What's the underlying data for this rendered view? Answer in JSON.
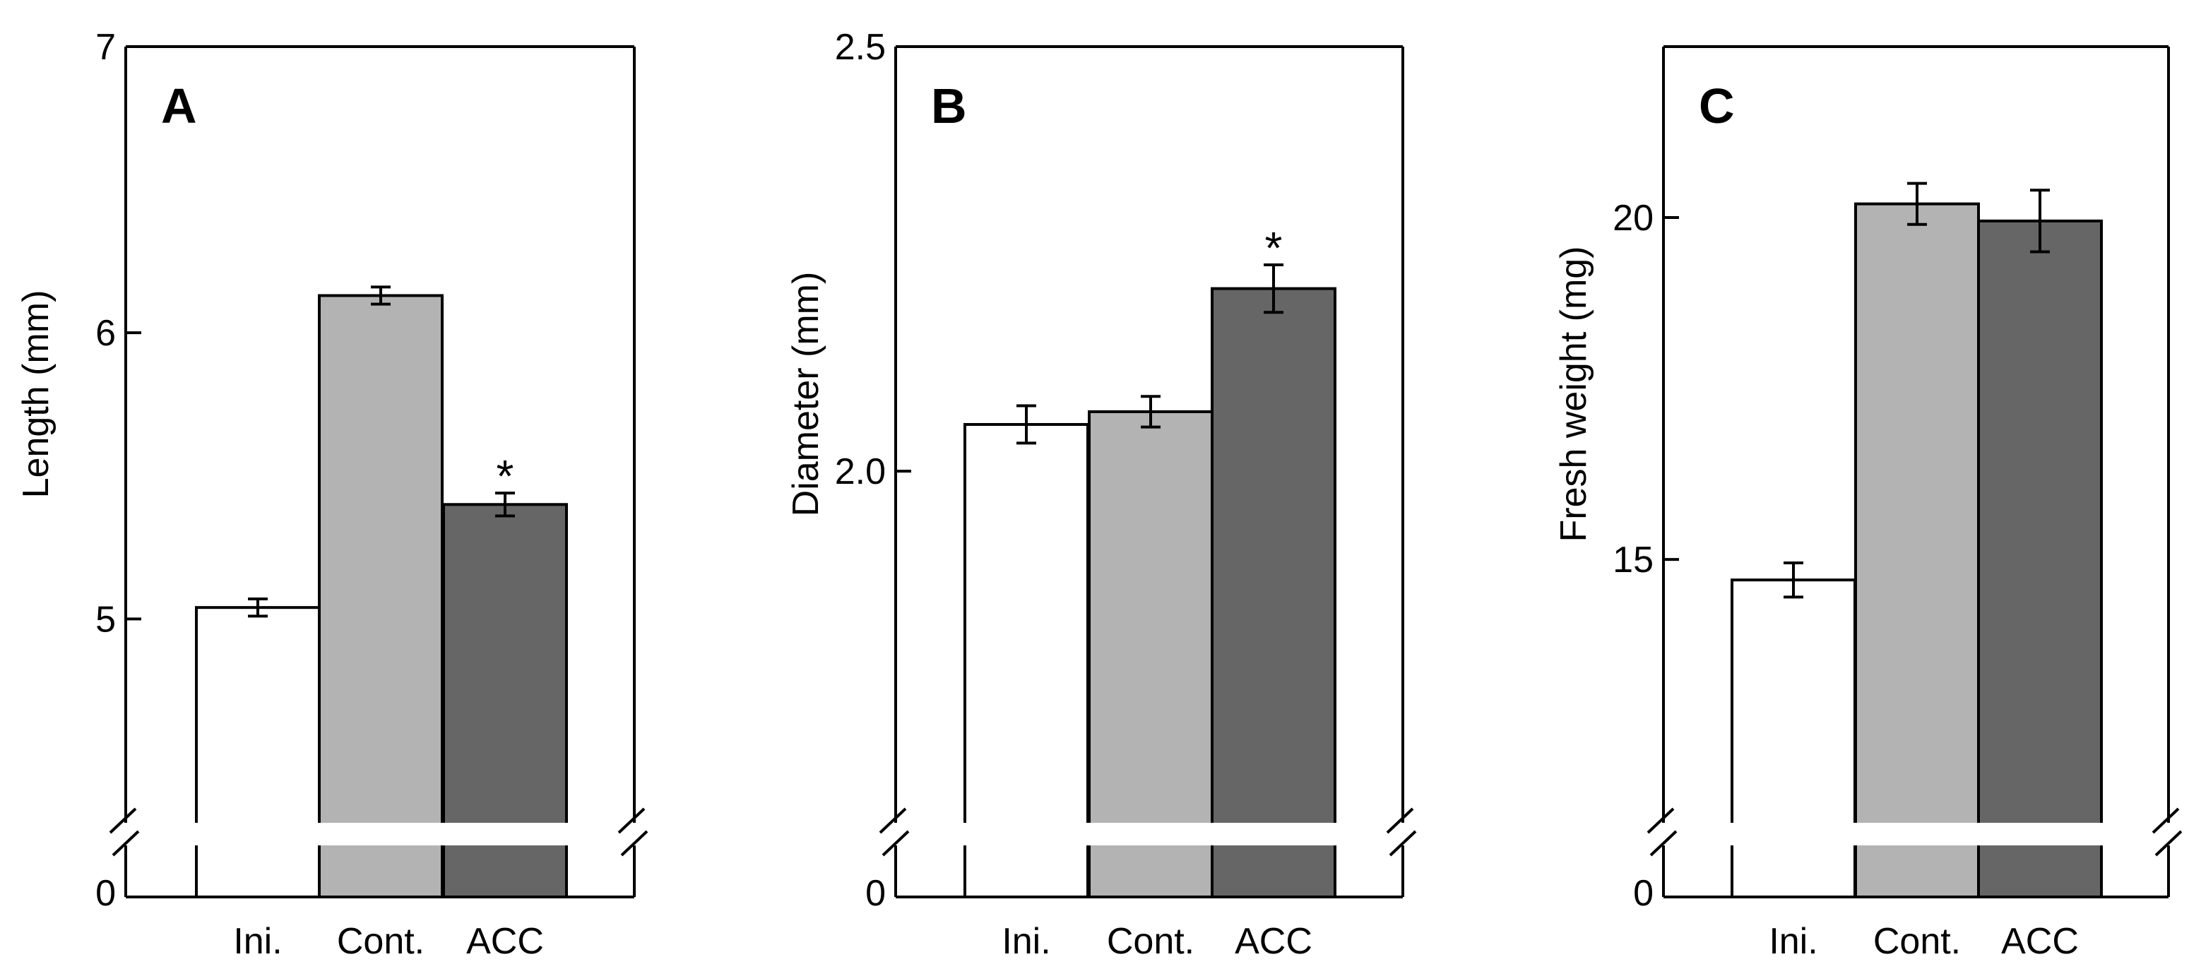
{
  "chart_data": [
    {
      "type": "bar",
      "panel": "A",
      "title": "",
      "ylabel": "Length (mm)",
      "xlabel": "",
      "categories": [
        "Ini.",
        "Cont.",
        "ACC"
      ],
      "values": [
        5.04,
        6.13,
        5.4
      ],
      "errors": [
        0.03,
        0.03,
        0.04
      ],
      "significance": [
        "",
        "",
        "*"
      ],
      "ylim": [
        4.3,
        7.0
      ],
      "ticks": [
        5,
        6,
        7
      ],
      "tick_labels": [
        "5",
        "6",
        "7"
      ],
      "zero_label": "0",
      "axis_break": true
    },
    {
      "type": "bar",
      "panel": "B",
      "title": "",
      "ylabel": "Diameter (mm)",
      "xlabel": "",
      "categories": [
        "Ini.",
        "Cont.",
        "ACC"
      ],
      "values": [
        2.055,
        2.07,
        2.215
      ],
      "errors": [
        0.022,
        0.018,
        0.028
      ],
      "significance": [
        "",
        "",
        "*"
      ],
      "ylim": [
        1.59,
        2.5
      ],
      "ticks": [
        2.0,
        2.5
      ],
      "tick_labels": [
        "2.0",
        "2.5"
      ],
      "zero_label": "0",
      "axis_break": true
    },
    {
      "type": "bar",
      "panel": "C",
      "title": "",
      "ylabel": "Fresh weight (mg)",
      "xlabel": "",
      "categories": [
        "Ini.",
        "Cont.",
        "ACC"
      ],
      "values": [
        14.7,
        20.2,
        19.95
      ],
      "errors": [
        0.25,
        0.3,
        0.45
      ],
      "significance": [
        "",
        "",
        ""
      ],
      "ylim": [
        11.2,
        22.5
      ],
      "ticks": [
        15,
        20
      ],
      "tick_labels": [
        "15",
        "20"
      ],
      "zero_label": "0",
      "axis_break": true
    }
  ],
  "colors": {
    "Ini.": "#ffffff",
    "Cont.": "#b3b3b3",
    "ACC": "#666666",
    "axis": "#000000"
  }
}
